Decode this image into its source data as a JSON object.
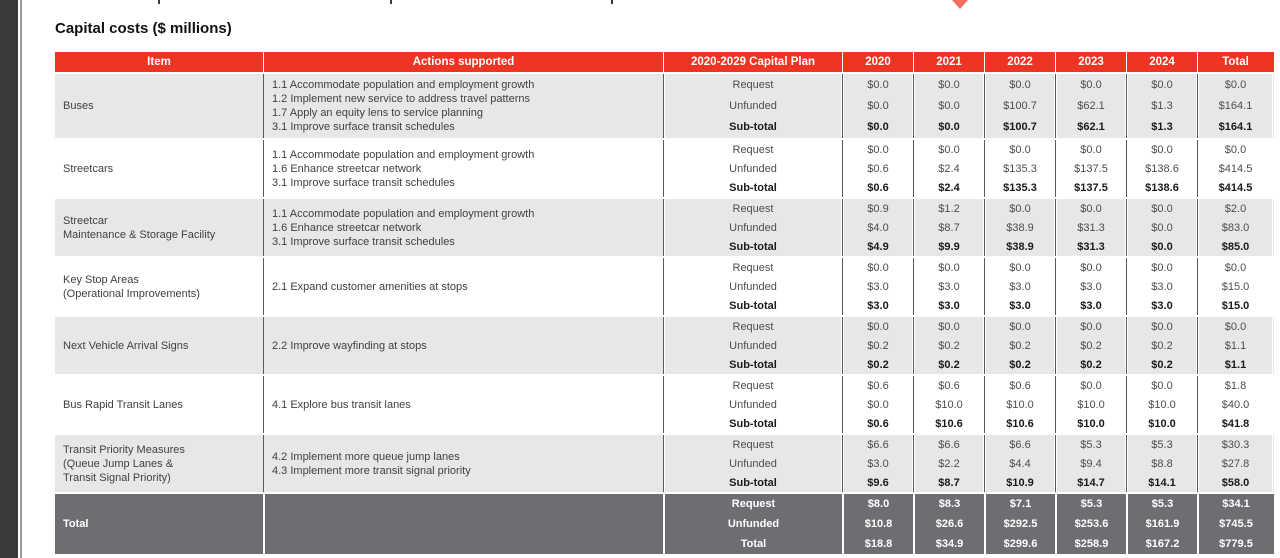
{
  "page": {
    "title": "Capital costs ($ millions)"
  },
  "colors": {
    "header_bg": "#EE3524",
    "shade_gray": "#E7E7E8",
    "total_bg": "#6D6E71",
    "rule": "#58595B",
    "diamond": "#F4705C",
    "window_edge": "#3A3A3A"
  },
  "decor": {
    "top_marker": "red-diamond-icon"
  },
  "table": {
    "columns": [
      "Item",
      "Actions supported",
      "2020-2029 Capital Plan",
      "2020",
      "2021",
      "2022",
      "2023",
      "2024",
      "Total"
    ],
    "groups": [
      {
        "item_lines": [
          "Buses"
        ],
        "shade": "gray",
        "actions": [
          "1.1 Accommodate population and employment growth",
          "1.2 Implement new service to address travel patterns",
          "1.7 Apply an equity lens to service planning",
          "3.1 Improve surface transit schedules"
        ],
        "rows": [
          {
            "label": "Request",
            "bold": false,
            "values": [
              "$0.0",
              "$0.0",
              "$0.0",
              "$0.0",
              "$0.0",
              "$0.0"
            ]
          },
          {
            "label": "Unfunded",
            "bold": false,
            "values": [
              "$0.0",
              "$0.0",
              "$100.7",
              "$62.1",
              "$1.3",
              "$164.1"
            ]
          },
          {
            "label": "Sub-total",
            "bold": true,
            "values": [
              "$0.0",
              "$0.0",
              "$100.7",
              "$62.1",
              "$1.3",
              "$164.1"
            ]
          }
        ]
      },
      {
        "item_lines": [
          "Streetcars"
        ],
        "shade": "white",
        "actions": [
          "1.1 Accommodate population and employment growth",
          "1.6 Enhance streetcar network",
          "3.1 Improve surface transit schedules"
        ],
        "rows": [
          {
            "label": "Request",
            "bold": false,
            "values": [
              "$0.0",
              "$0.0",
              "$0.0",
              "$0.0",
              "$0.0",
              "$0.0"
            ]
          },
          {
            "label": "Unfunded",
            "bold": false,
            "values": [
              "$0.6",
              "$2.4",
              "$135.3",
              "$137.5",
              "$138.6",
              "$414.5"
            ]
          },
          {
            "label": "Sub-total",
            "bold": true,
            "values": [
              "$0.6",
              "$2.4",
              "$135.3",
              "$137.5",
              "$138.6",
              "$414.5"
            ]
          }
        ]
      },
      {
        "item_lines": [
          "Streetcar",
          "Maintenance & Storage Facility"
        ],
        "shade": "gray",
        "actions": [
          "1.1 Accommodate population and employment growth",
          "1.6 Enhance streetcar network",
          "3.1 Improve surface transit schedules"
        ],
        "rows": [
          {
            "label": "Request",
            "bold": false,
            "values": [
              "$0.9",
              "$1.2",
              "$0.0",
              "$0.0",
              "$0.0",
              "$2.0"
            ]
          },
          {
            "label": "Unfunded",
            "bold": false,
            "values": [
              "$4.0",
              "$8.7",
              "$38.9",
              "$31.3",
              "$0.0",
              "$83.0"
            ]
          },
          {
            "label": "Sub-total",
            "bold": true,
            "values": [
              "$4.9",
              "$9.9",
              "$38.9",
              "$31.3",
              "$0.0",
              "$85.0"
            ]
          }
        ]
      },
      {
        "item_lines": [
          "Key Stop Areas",
          "(Operational Improvements)"
        ],
        "shade": "white",
        "actions": [
          "2.1 Expand customer amenities at stops"
        ],
        "rows": [
          {
            "label": "Request",
            "bold": false,
            "values": [
              "$0.0",
              "$0.0",
              "$0.0",
              "$0.0",
              "$0.0",
              "$0.0"
            ]
          },
          {
            "label": "Unfunded",
            "bold": false,
            "values": [
              "$3.0",
              "$3.0",
              "$3.0",
              "$3.0",
              "$3.0",
              "$15.0"
            ]
          },
          {
            "label": "Sub-total",
            "bold": true,
            "values": [
              "$3.0",
              "$3.0",
              "$3.0",
              "$3.0",
              "$3.0",
              "$15.0"
            ]
          }
        ]
      },
      {
        "item_lines": [
          "Next Vehicle Arrival Signs"
        ],
        "shade": "gray",
        "actions": [
          "2.2 Improve wayfinding at stops"
        ],
        "rows": [
          {
            "label": "Request",
            "bold": false,
            "values": [
              "$0.0",
              "$0.0",
              "$0.0",
              "$0.0",
              "$0.0",
              "$0.0"
            ]
          },
          {
            "label": "Unfunded",
            "bold": false,
            "values": [
              "$0.2",
              "$0.2",
              "$0.2",
              "$0.2",
              "$0.2",
              "$1.1"
            ]
          },
          {
            "label": "Sub-total",
            "bold": true,
            "values": [
              "$0.2",
              "$0.2",
              "$0.2",
              "$0.2",
              "$0.2",
              "$1.1"
            ]
          }
        ]
      },
      {
        "item_lines": [
          "Bus Rapid Transit Lanes"
        ],
        "shade": "white",
        "actions": [
          "4.1 Explore bus transit lanes"
        ],
        "rows": [
          {
            "label": "Request",
            "bold": false,
            "values": [
              "$0.6",
              "$0.6",
              "$0.6",
              "$0.0",
              "$0.0",
              "$1.8"
            ]
          },
          {
            "label": "Unfunded",
            "bold": false,
            "values": [
              "$0.0",
              "$10.0",
              "$10.0",
              "$10.0",
              "$10.0",
              "$40.0"
            ]
          },
          {
            "label": "Sub-total",
            "bold": true,
            "values": [
              "$0.6",
              "$10.6",
              "$10.6",
              "$10.0",
              "$10.0",
              "$41.8"
            ]
          }
        ]
      },
      {
        "item_lines": [
          "Transit Priority Measures",
          "(Queue Jump Lanes &",
          "Transit Signal Priority)"
        ],
        "shade": "gray",
        "actions": [
          "4.2 Implement more queue jump lanes",
          "4.3 Implement more transit signal priority"
        ],
        "rows": [
          {
            "label": "Request",
            "bold": false,
            "values": [
              "$6.6",
              "$6.6",
              "$6.6",
              "$5.3",
              "$5.3",
              "$30.3"
            ]
          },
          {
            "label": "Unfunded",
            "bold": false,
            "values": [
              "$3.0",
              "$2.2",
              "$4.4",
              "$9.4",
              "$8.8",
              "$27.8"
            ]
          },
          {
            "label": "Sub-total",
            "bold": true,
            "values": [
              "$9.6",
              "$8.7",
              "$10.9",
              "$14.7",
              "$14.1",
              "$58.0"
            ]
          }
        ]
      }
    ],
    "total": {
      "item_lines": [
        "Total"
      ],
      "rows": [
        {
          "label": "Request",
          "values": [
            "$8.0",
            "$8.3",
            "$7.1",
            "$5.3",
            "$5.3",
            "$34.1"
          ]
        },
        {
          "label": "Unfunded",
          "values": [
            "$10.8",
            "$26.6",
            "$292.5",
            "$253.6",
            "$161.9",
            "$745.5"
          ]
        },
        {
          "label": "Total",
          "values": [
            "$18.8",
            "$34.9",
            "$299.6",
            "$258.9",
            "$167.2",
            "$779.5"
          ]
        }
      ]
    }
  }
}
